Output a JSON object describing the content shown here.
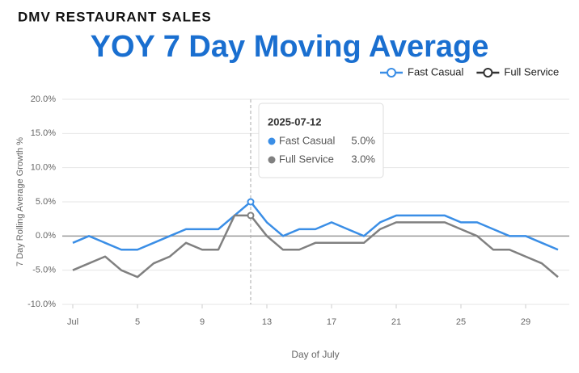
{
  "chart_data": {
    "type": "line",
    "title": "DMV RESTAURANT SALES",
    "subtitle": "YOY 7 Day Moving Average",
    "ylabel": "7 Day Rolling Average Growth %",
    "xlabel": "Day of July",
    "x": [
      1,
      2,
      3,
      4,
      5,
      6,
      7,
      8,
      9,
      10,
      11,
      12,
      13,
      14,
      15,
      16,
      17,
      18,
      19,
      20,
      21,
      22,
      23,
      24,
      25,
      26,
      27,
      28,
      29,
      30,
      31
    ],
    "series": [
      {
        "name": "Fast Casual",
        "color": "#3a8ee6",
        "values": [
          -1,
          0,
          -1,
          -2,
          -2,
          -1,
          0,
          1,
          1,
          1,
          3,
          5,
          2,
          0,
          1,
          1,
          2,
          1,
          0,
          2,
          3,
          3,
          3,
          3,
          2,
          2,
          1,
          0,
          0,
          -1,
          -2
        ]
      },
      {
        "name": "Full Service",
        "color": "#808080",
        "values": [
          -5,
          -4,
          -3,
          -5,
          -6,
          -4,
          -3,
          -1,
          -2,
          -2,
          3,
          3,
          0,
          -2,
          -2,
          -1,
          -1,
          -1,
          -1,
          1,
          2,
          2,
          2,
          2,
          1,
          0,
          -2,
          -2,
          -3,
          -4,
          -6
        ]
      }
    ],
    "xlim": [
      0.35,
      31.7
    ],
    "xticks": [
      {
        "value": 1,
        "label": "Jul"
      },
      5,
      9,
      13,
      17,
      21,
      25,
      29
    ],
    "ylim": [
      -10,
      20
    ],
    "yticks": [
      {
        "value": -10,
        "label": "-10.0%"
      },
      {
        "value": -5,
        "label": "-5.0%"
      },
      {
        "value": 0,
        "label": "0.0%"
      },
      {
        "value": 5,
        "label": "5.0%"
      },
      {
        "value": 10,
        "label": "10.0%"
      },
      {
        "value": 15,
        "label": "15.0%"
      },
      {
        "value": 20,
        "label": "20.0%"
      }
    ],
    "grid": true,
    "legend": "top-right",
    "tooltip": {
      "x": 12,
      "title": "2025-07-12",
      "rows": [
        {
          "name": "Fast Casual",
          "value": 5,
          "value_label": "5.0%"
        },
        {
          "name": "Full Service",
          "value": 3,
          "value_label": "3.0%"
        }
      ]
    }
  }
}
